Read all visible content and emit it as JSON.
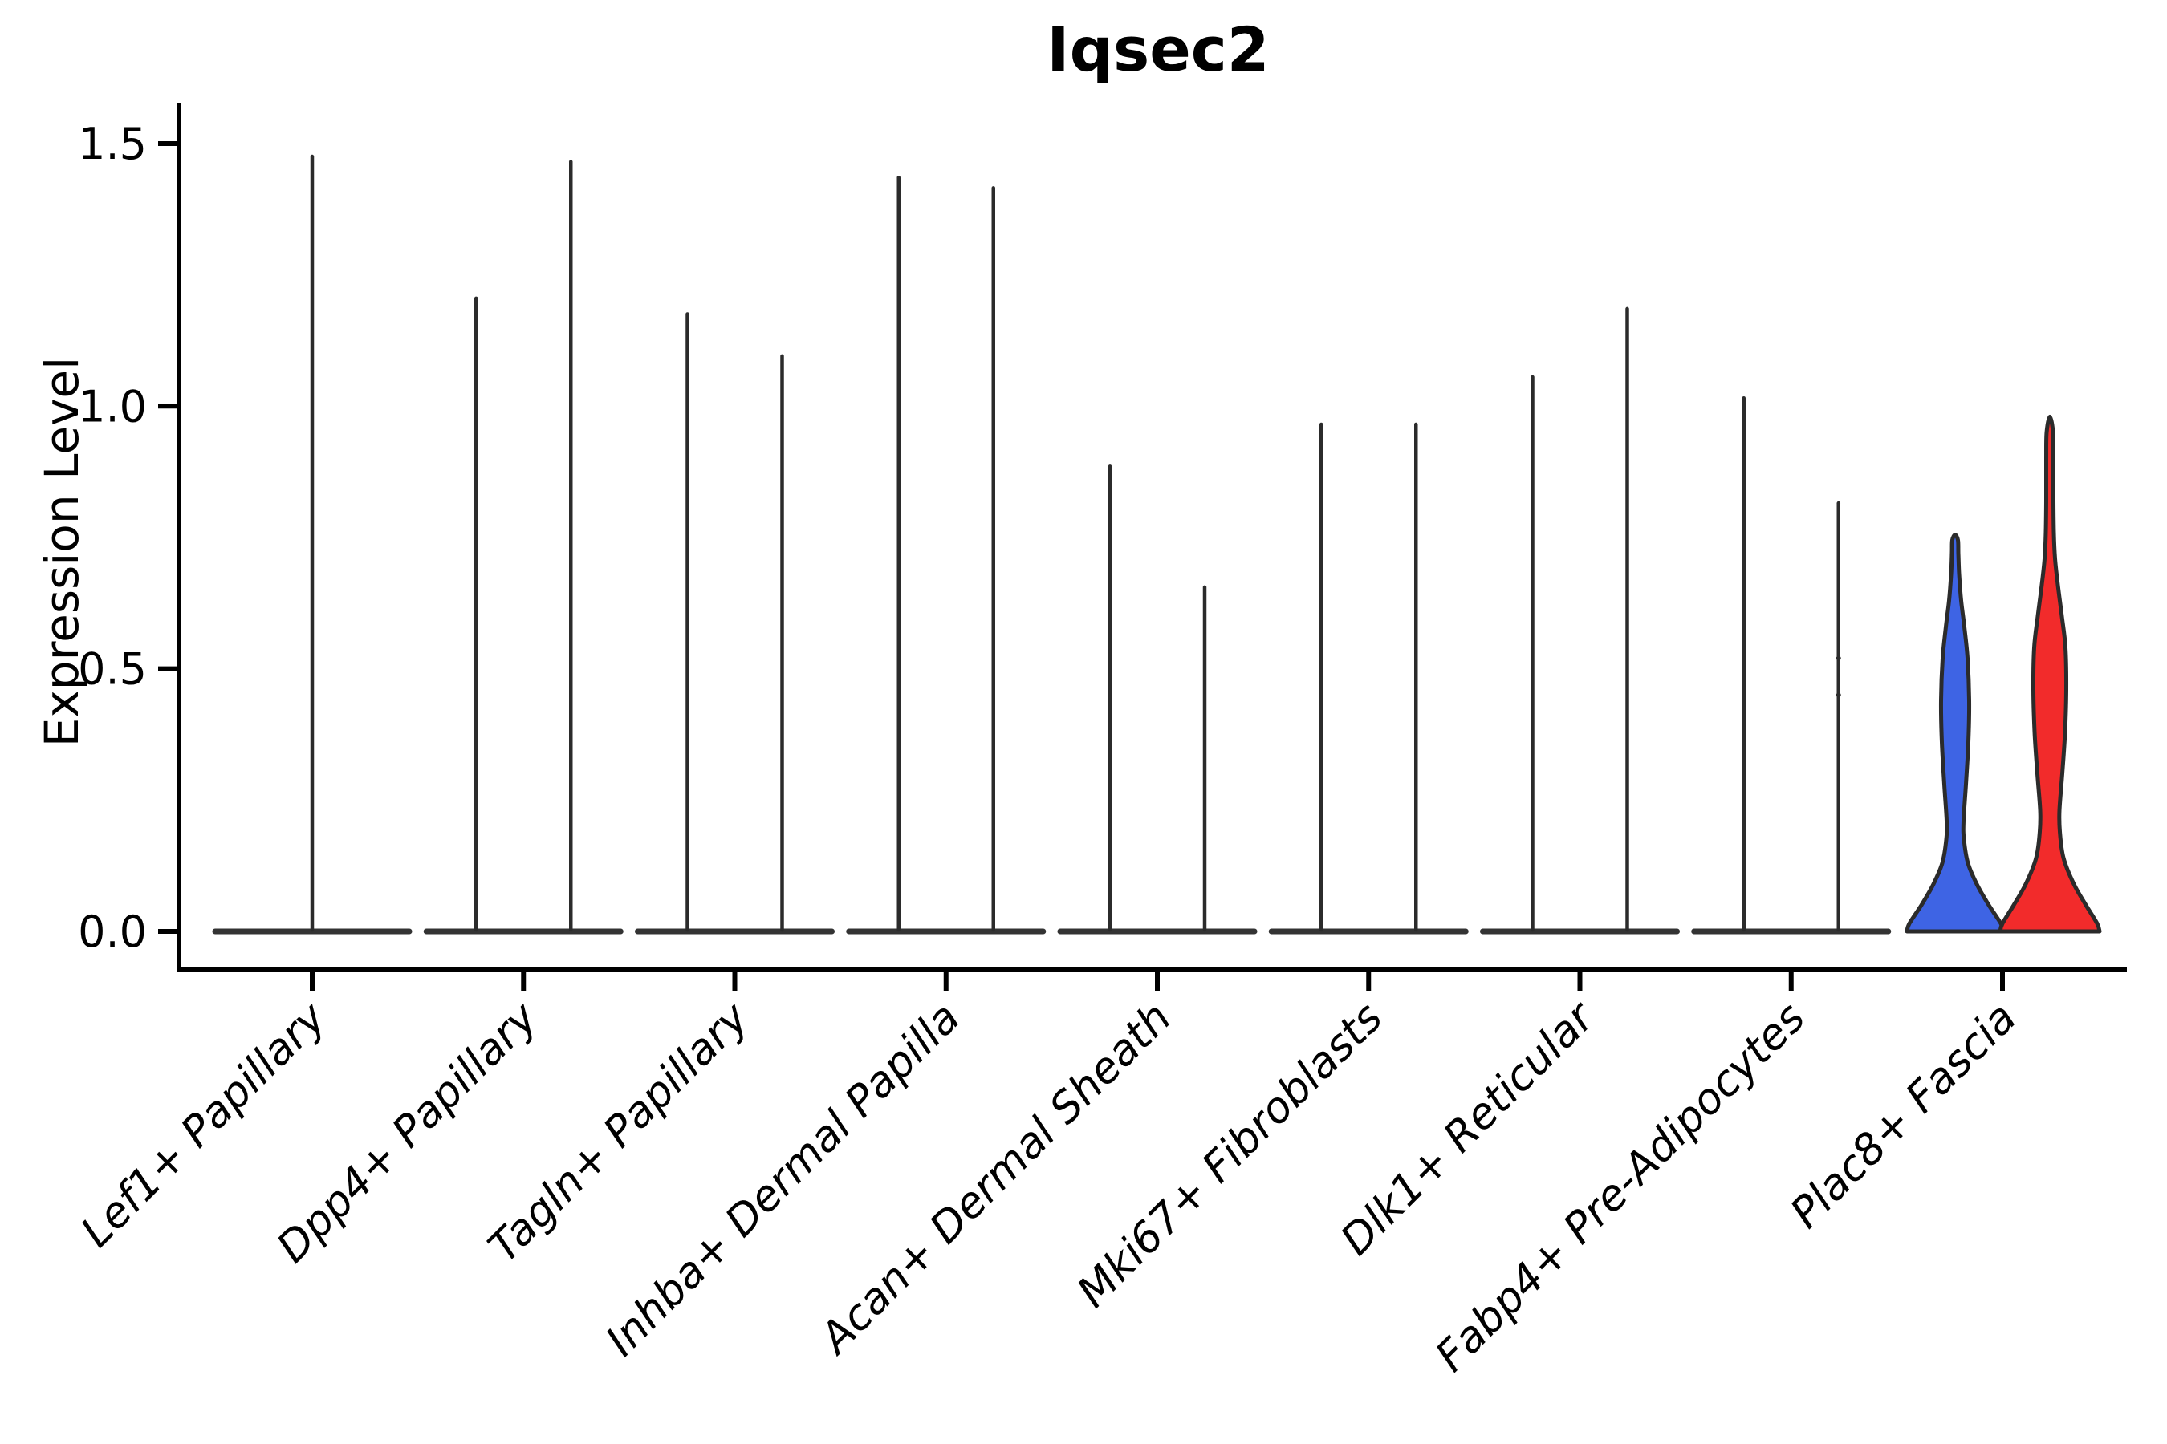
{
  "figure": {
    "title": "Iqsec2",
    "ylabel": "Expression Level"
  },
  "chart_data": {
    "type": "violin",
    "title": "Iqsec2",
    "xlabel": "",
    "ylabel": "Expression Level",
    "ylim": [
      -0.07,
      1.58
    ],
    "grid": false,
    "legend": "none",
    "yticks": {
      "values": [
        0.0,
        0.5,
        1.0,
        1.5
      ],
      "labels": [
        "0.0",
        "0.5",
        "1.0",
        "1.5"
      ]
    },
    "colors": {
      "axis": "#000000",
      "violin_outline": "#2b2b2b",
      "baseline_bar": "#333333",
      "group_blue": "#3e64e4",
      "group_red": "#f22b2b"
    },
    "note": "Split violin plot; most mass at 0 (flat bars) with thin density spikes up to each group max expression. Last category shows two filled violins (blue/red groups).",
    "categories": [
      {
        "label": "Lef1+ Papillary",
        "violins": [
          {
            "position": "center",
            "style": "thin-spike",
            "max": 1.48
          }
        ]
      },
      {
        "label": "Dpp4+ Papillary",
        "violins": [
          {
            "position": "left",
            "style": "thin-spike",
            "max": 1.21
          },
          {
            "position": "right",
            "style": "thin-spike",
            "max": 1.47
          }
        ]
      },
      {
        "label": "Tagln+ Papillary",
        "violins": [
          {
            "position": "left",
            "style": "thin-spike",
            "max": 1.18
          },
          {
            "position": "right",
            "style": "thin-spike",
            "max": 1.1
          }
        ]
      },
      {
        "label": "Inhba+ Dermal Papilla",
        "violins": [
          {
            "position": "left",
            "style": "thin-spike",
            "max": 1.44
          },
          {
            "position": "right",
            "style": "thin-spike",
            "max": 1.42
          }
        ]
      },
      {
        "label": "Acan+ Dermal Sheath",
        "violins": [
          {
            "position": "left",
            "style": "thin-spike",
            "max": 0.89
          },
          {
            "position": "right",
            "style": "thin-spike",
            "max": 0.66
          }
        ]
      },
      {
        "label": "Mki67+ Fibroblasts",
        "violins": [
          {
            "position": "left",
            "style": "thin-spike",
            "max": 0.97
          },
          {
            "position": "right",
            "style": "thin-spike",
            "max": 0.97
          }
        ]
      },
      {
        "label": "Dlk1+ Reticular",
        "violins": [
          {
            "position": "left",
            "style": "thin-spike",
            "max": 1.06
          },
          {
            "position": "right",
            "style": "thin-spike",
            "max": 1.19
          }
        ]
      },
      {
        "label": "Fabp4+ Pre-Adipocytes",
        "violins": [
          {
            "position": "left",
            "style": "thin-spike",
            "max": 1.02
          },
          {
            "position": "right",
            "style": "thin-spike",
            "max": 0.82,
            "dots": [
              0.52,
              0.45
            ]
          }
        ]
      },
      {
        "label": "Plac8+ Fascia",
        "violins": [
          {
            "position": "left",
            "style": "filled",
            "color_key": "group_blue",
            "max": 0.75,
            "profile": [
              [
                0.0,
                60
              ],
              [
                0.015,
                57
              ],
              [
                0.05,
                42
              ],
              [
                0.09,
                27
              ],
              [
                0.13,
                16
              ],
              [
                0.175,
                11
              ],
              [
                0.21,
                10.5
              ],
              [
                0.28,
                13.5
              ],
              [
                0.36,
                16.5
              ],
              [
                0.44,
                17.5
              ],
              [
                0.52,
                15.5
              ],
              [
                0.58,
                11.5
              ],
              [
                0.63,
                7.5
              ],
              [
                0.68,
                5
              ],
              [
                0.72,
                4
              ],
              [
                0.745,
                3.5
              ],
              [
                0.755,
                0
              ]
            ]
          },
          {
            "position": "right",
            "style": "filled",
            "color_key": "group_red",
            "max": 0.98,
            "profile": [
              [
                0.0,
                62
              ],
              [
                0.015,
                59
              ],
              [
                0.05,
                45
              ],
              [
                0.09,
                30
              ],
              [
                0.14,
                17
              ],
              [
                0.19,
                12.5
              ],
              [
                0.23,
                12
              ],
              [
                0.3,
                15.5
              ],
              [
                0.38,
                19
              ],
              [
                0.46,
                20.5
              ],
              [
                0.54,
                19.5
              ],
              [
                0.6,
                15
              ],
              [
                0.66,
                10
              ],
              [
                0.71,
                6.5
              ],
              [
                0.76,
                5
              ],
              [
                0.82,
                4.5
              ],
              [
                0.9,
                4.5
              ],
              [
                0.95,
                4
              ],
              [
                0.98,
                0
              ]
            ]
          }
        ]
      }
    ]
  }
}
